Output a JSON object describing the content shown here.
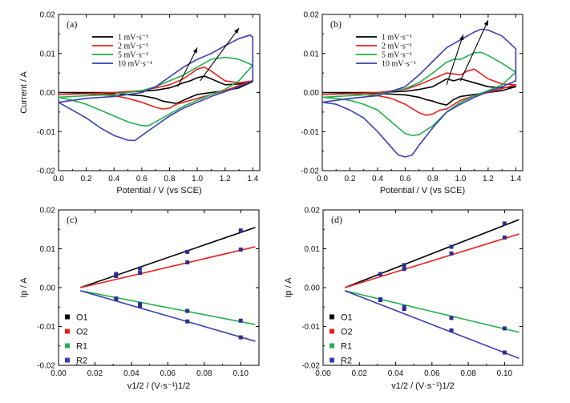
{
  "chart_data": [
    {
      "panel": "(a)",
      "type": "line",
      "xlabel": "Potential  / V (vs SCE)",
      "ylabel": "Current / A",
      "xlim": [
        0.0,
        1.45
      ],
      "ylim": [
        -0.02,
        0.02
      ],
      "xticks": [
        "0.0",
        "0.2",
        "0.4",
        "0.6",
        "0.8",
        "1.0",
        "1.2",
        "1.4"
      ],
      "yticks": [
        "-0.02",
        "-0.01",
        "0.00",
        "0.01",
        "0.02"
      ],
      "legend_position": "top-left",
      "colors": [
        "#000000",
        "#e8211d",
        "#22b14c",
        "#3a3fb0"
      ],
      "series": [
        {
          "name": "1 mV·s⁻¹",
          "x": [
            0.0,
            0.2,
            0.4,
            0.6,
            0.7,
            0.8,
            0.85,
            0.9,
            0.95,
            1.0,
            1.05,
            1.1,
            1.2,
            1.3,
            1.4,
            1.4,
            1.3,
            1.2,
            1.1,
            1.0,
            0.95,
            0.9,
            0.85,
            0.8,
            0.75,
            0.7,
            0.6,
            0.4,
            0.2,
            0.0
          ],
          "y": [
            0.0,
            0.0,
            0.0,
            0.0003,
            0.0006,
            0.0012,
            0.0018,
            0.0025,
            0.003,
            0.0038,
            0.0042,
            0.0035,
            0.002,
            0.0022,
            0.0028,
            0.0028,
            0.0012,
            0.0005,
            0.0,
            -0.0005,
            -0.0012,
            -0.002,
            -0.0028,
            -0.0025,
            -0.0022,
            -0.0015,
            -0.0008,
            -0.0003,
            -0.0001,
            0.0
          ]
        },
        {
          "name": "2 mV·s⁻¹",
          "x": [
            0.0,
            0.2,
            0.4,
            0.6,
            0.7,
            0.8,
            0.9,
            1.0,
            1.05,
            1.1,
            1.2,
            1.3,
            1.4,
            1.4,
            1.3,
            1.2,
            1.1,
            1.0,
            0.9,
            0.85,
            0.8,
            0.75,
            0.7,
            0.6,
            0.5,
            0.4,
            0.2,
            0.0
          ],
          "y": [
            -0.0005,
            -0.0003,
            0.0,
            0.0005,
            0.0012,
            0.002,
            0.0035,
            0.006,
            0.0065,
            0.0055,
            0.003,
            0.0025,
            0.003,
            0.003,
            0.0018,
            0.0005,
            -0.0005,
            -0.0015,
            -0.0025,
            -0.003,
            -0.004,
            -0.0042,
            -0.0038,
            -0.0025,
            -0.0015,
            -0.0008,
            -0.0003,
            -0.0005
          ]
        },
        {
          "name": "5 mV·s⁻¹",
          "x": [
            0.0,
            0.2,
            0.4,
            0.6,
            0.7,
            0.8,
            0.9,
            1.0,
            1.1,
            1.2,
            1.25,
            1.3,
            1.4,
            1.4,
            1.3,
            1.2,
            1.1,
            1.0,
            0.9,
            0.8,
            0.7,
            0.65,
            0.6,
            0.5,
            0.4,
            0.3,
            0.2,
            0.1,
            0.0
          ],
          "y": [
            -0.0012,
            -0.0008,
            -0.0005,
            0.0005,
            0.0015,
            0.003,
            0.0045,
            0.0065,
            0.0085,
            0.009,
            0.0088,
            0.0085,
            0.007,
            0.007,
            0.003,
            0.0008,
            -0.0005,
            -0.002,
            -0.0035,
            -0.0055,
            -0.0075,
            -0.0085,
            -0.0085,
            -0.0075,
            -0.006,
            -0.0045,
            -0.003,
            -0.002,
            -0.0012
          ]
        },
        {
          "name": "10 mV·s⁻¹",
          "x": [
            0.0,
            0.2,
            0.4,
            0.6,
            0.7,
            0.8,
            0.9,
            1.0,
            1.1,
            1.2,
            1.3,
            1.38,
            1.4,
            1.4,
            1.3,
            1.2,
            1.1,
            1.0,
            0.9,
            0.8,
            0.7,
            0.6,
            0.55,
            0.5,
            0.4,
            0.3,
            0.2,
            0.1,
            0.0
          ],
          "y": [
            -0.0025,
            -0.0015,
            -0.001,
            0.0,
            0.0015,
            0.004,
            0.0065,
            0.0085,
            0.01,
            0.012,
            0.0138,
            0.0147,
            0.0142,
            0.003,
            0.0015,
            0.0002,
            -0.001,
            -0.0025,
            -0.004,
            -0.006,
            -0.0085,
            -0.011,
            -0.0123,
            -0.0122,
            -0.011,
            -0.009,
            -0.0065,
            -0.0045,
            -0.0025
          ]
        }
      ]
    },
    {
      "panel": "(b)",
      "type": "line",
      "xlabel": "Potential  / V (vs SCE)",
      "ylabel": "",
      "xlim": [
        0.0,
        1.45
      ],
      "ylim": [
        -0.02,
        0.02
      ],
      "xticks": [
        "0.0",
        "0.2",
        "0.4",
        "0.6",
        "0.8",
        "1.0",
        "1.2",
        "1.4"
      ],
      "yticks": [
        "-0.02",
        "-0.01",
        "0.00",
        "0.01",
        "0.02"
      ],
      "legend_position": "top-left",
      "colors": [
        "#000000",
        "#e8211d",
        "#22b14c",
        "#3a3fb0"
      ],
      "series": [
        {
          "name": "1 mV·s⁻¹",
          "x": [
            0.0,
            0.2,
            0.4,
            0.6,
            0.7,
            0.8,
            0.85,
            0.9,
            0.95,
            1.0,
            1.05,
            1.1,
            1.2,
            1.3,
            1.4,
            1.4,
            1.3,
            1.2,
            1.1,
            1.0,
            0.95,
            0.9,
            0.85,
            0.8,
            0.75,
            0.7,
            0.6,
            0.4,
            0.2,
            0.0
          ],
          "y": [
            0.0,
            0.0,
            0.0,
            0.0003,
            0.0008,
            0.0015,
            0.0025,
            0.0035,
            0.003,
            0.0035,
            0.003,
            0.0025,
            0.0015,
            0.0012,
            0.0015,
            0.0015,
            0.0005,
            0.0,
            -0.0005,
            -0.001,
            -0.0018,
            -0.0032,
            -0.0028,
            -0.0022,
            -0.0018,
            -0.0012,
            -0.0006,
            -0.0002,
            -0.0001,
            0.0
          ]
        },
        {
          "name": "2 mV·s⁻¹",
          "x": [
            0.0,
            0.2,
            0.4,
            0.6,
            0.7,
            0.8,
            0.9,
            1.0,
            1.05,
            1.1,
            1.2,
            1.3,
            1.4,
            1.4,
            1.3,
            1.2,
            1.1,
            1.0,
            0.9,
            0.85,
            0.8,
            0.75,
            0.7,
            0.6,
            0.5,
            0.4,
            0.2,
            0.0
          ],
          "y": [
            -0.0005,
            -0.0003,
            0.0,
            0.0008,
            0.002,
            0.0035,
            0.005,
            0.0045,
            0.0055,
            0.006,
            0.0035,
            0.0022,
            0.002,
            0.002,
            0.001,
            0.0,
            -0.0008,
            -0.002,
            -0.0042,
            -0.0045,
            -0.0055,
            -0.0058,
            -0.0052,
            -0.003,
            -0.0015,
            -0.0008,
            -0.0003,
            -0.0005
          ]
        },
        {
          "name": "5 mV·s⁻¹",
          "x": [
            0.0,
            0.2,
            0.4,
            0.6,
            0.7,
            0.8,
            0.9,
            0.95,
            1.0,
            1.1,
            1.15,
            1.2,
            1.3,
            1.4,
            1.4,
            1.3,
            1.2,
            1.1,
            1.0,
            0.9,
            0.8,
            0.7,
            0.65,
            0.6,
            0.5,
            0.4,
            0.3,
            0.2,
            0.1,
            0.0
          ],
          "y": [
            -0.0012,
            -0.0008,
            -0.0004,
            0.001,
            0.0025,
            0.005,
            0.0078,
            0.0085,
            0.0085,
            0.0102,
            0.0103,
            0.0095,
            0.0075,
            0.0052,
            0.0052,
            0.002,
            0.0005,
            -0.0008,
            -0.0025,
            -0.005,
            -0.0085,
            -0.0108,
            -0.011,
            -0.0105,
            -0.0075,
            -0.0045,
            -0.003,
            -0.002,
            -0.0015,
            -0.0012
          ]
        },
        {
          "name": "10 mV·s⁻¹",
          "x": [
            0.0,
            0.2,
            0.4,
            0.6,
            0.7,
            0.8,
            0.9,
            1.0,
            1.1,
            1.15,
            1.2,
            1.3,
            1.4,
            1.4,
            1.3,
            1.2,
            1.1,
            1.0,
            0.9,
            0.8,
            0.7,
            0.65,
            0.6,
            0.55,
            0.5,
            0.4,
            0.3,
            0.2,
            0.1,
            0.0
          ],
          "y": [
            -0.0025,
            -0.0015,
            -0.0008,
            0.0015,
            0.0045,
            0.008,
            0.0115,
            0.0135,
            0.0155,
            0.0162,
            0.016,
            0.0145,
            0.0112,
            0.003,
            0.0015,
            0.0002,
            -0.0012,
            -0.003,
            -0.005,
            -0.009,
            -0.0135,
            -0.016,
            -0.0165,
            -0.016,
            -0.014,
            -0.01,
            -0.0065,
            -0.0045,
            -0.003,
            -0.0025
          ]
        }
      ]
    },
    {
      "panel": "(c)",
      "type": "scatter",
      "xlabel": "v1/2 / (V·s⁻¹)1/2",
      "ylabel": "Ip / A",
      "xlim": [
        0.0,
        0.11
      ],
      "ylim": [
        -0.02,
        0.02
      ],
      "xticks": [
        "0.00",
        "0.02",
        "0.04",
        "0.06",
        "0.08",
        "0.10"
      ],
      "yticks": [
        "-0.02",
        "-0.01",
        "0.00",
        "0.01",
        "0.02"
      ],
      "legend_position": "bottom-left",
      "colors": [
        "#000000",
        "#e8211d",
        "#22b14c",
        "#3a3fb0"
      ],
      "series": [
        {
          "name": "O1",
          "x": [
            0.0316,
            0.0447,
            0.0707,
            0.1
          ],
          "y": [
            0.0035,
            0.0049,
            0.0092,
            0.0147
          ],
          "fit": [
            [
              0.012,
              0.0
            ],
            [
              0.108,
              0.0155
            ]
          ]
        },
        {
          "name": "O2",
          "x": [
            0.0316,
            0.0447,
            0.0707,
            0.1
          ],
          "y": [
            0.003,
            0.0038,
            0.0065,
            0.0098
          ],
          "fit": [
            [
              0.012,
              0.0
            ],
            [
              0.108,
              0.0105
            ]
          ]
        },
        {
          "name": "R1",
          "x": [
            0.0316,
            0.0447,
            0.0707,
            0.1
          ],
          "y": [
            -0.003,
            -0.0042,
            -0.006,
            -0.0085
          ],
          "fit": [
            [
              0.012,
              -0.0008
            ],
            [
              0.108,
              -0.0095
            ]
          ]
        },
        {
          "name": "R2",
          "x": [
            0.0316,
            0.0447,
            0.0707,
            0.1
          ],
          "y": [
            -0.0028,
            -0.0048,
            -0.0087,
            -0.0128
          ],
          "fit": [
            [
              0.012,
              -0.0008
            ],
            [
              0.108,
              -0.0138
            ]
          ]
        }
      ]
    },
    {
      "panel": "(d)",
      "type": "scatter",
      "xlabel": "v1/2 / (V·s⁻¹)1/2",
      "ylabel": "Ip / A",
      "xlim": [
        0.0,
        0.11
      ],
      "ylim": [
        -0.02,
        0.02
      ],
      "xticks": [
        "0.00",
        "0.02",
        "0.04",
        "0.06",
        "0.08",
        "0.10"
      ],
      "yticks": [
        "-0.02",
        "-0.01",
        "0.00",
        "0.01",
        "0.02"
      ],
      "legend_position": "bottom-left",
      "colors": [
        "#000000",
        "#e8211d",
        "#22b14c",
        "#3a3fb0"
      ],
      "series": [
        {
          "name": "O1",
          "x": [
            0.0316,
            0.0447,
            0.0707,
            0.1
          ],
          "y": [
            0.0035,
            0.0058,
            0.0105,
            0.0165
          ],
          "fit": [
            [
              0.012,
              0.0
            ],
            [
              0.108,
              0.0175
            ]
          ]
        },
        {
          "name": "O2",
          "x": [
            0.0316,
            0.0447,
            0.0707,
            0.1
          ],
          "y": [
            0.0035,
            0.0048,
            0.0088,
            0.0129
          ],
          "fit": [
            [
              0.012,
              0.0
            ],
            [
              0.108,
              0.0138
            ]
          ]
        },
        {
          "name": "R1",
          "x": [
            0.0316,
            0.0447,
            0.0707,
            0.1
          ],
          "y": [
            -0.003,
            -0.005,
            -0.0078,
            -0.0105
          ],
          "fit": [
            [
              0.012,
              -0.0008
            ],
            [
              0.108,
              -0.0115
            ]
          ]
        },
        {
          "name": "R2",
          "x": [
            0.0316,
            0.0447,
            0.0707,
            0.1
          ],
          "y": [
            -0.0032,
            -0.0055,
            -0.011,
            -0.0167
          ],
          "fit": [
            [
              0.012,
              -0.0008
            ],
            [
              0.108,
              -0.0182
            ]
          ]
        }
      ]
    }
  ]
}
